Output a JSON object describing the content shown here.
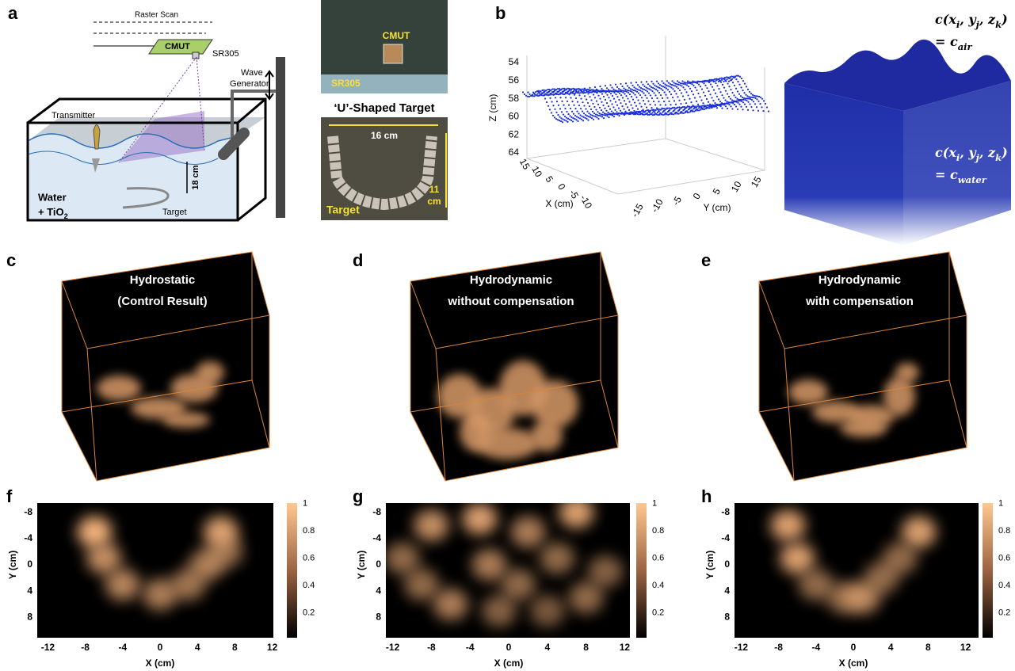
{
  "panel_labels": [
    "a",
    "b",
    "c",
    "d",
    "e",
    "f",
    "g",
    "h"
  ],
  "a": {
    "raster_scan": "Raster Scan",
    "cmut": "CMUT",
    "sr305": "SR305",
    "wave_generator": [
      "Wave",
      "Generator"
    ],
    "transmitter": "Transmitter",
    "depth": "18 cm",
    "medium_line1": "Water",
    "medium_line2": [
      "+ TiO",
      "2"
    ],
    "target": "Target",
    "photo_top": {
      "cmut": "CMUT",
      "sr305": "SR305"
    },
    "photo_bottom": {
      "title": "‘U’-Shaped Target",
      "width": "16 cm",
      "height": [
        "11",
        "cm"
      ],
      "target": "Target"
    }
  },
  "b": {
    "z_label": "Z (cm)",
    "x_label": "X (cm)",
    "y_label": "Y (cm)",
    "z_ticks": [
      54,
      56,
      58,
      60,
      62,
      64
    ],
    "x_ticks": [
      15,
      10,
      5,
      0,
      -5,
      -10
    ],
    "y_ticks": [
      -15,
      -10,
      -5,
      0,
      5,
      10,
      15
    ],
    "air_eq": {
      "lhs": [
        "c(x",
        "i",
        ", y",
        "j",
        ", z",
        "k",
        ")"
      ],
      "rhs": [
        "= c",
        "air"
      ]
    },
    "water_eq": {
      "lhs": [
        "c(x",
        "i",
        ", y",
        "j",
        ", z",
        "k",
        ")"
      ],
      "rhs": [
        "= c",
        "water"
      ]
    }
  },
  "c": {
    "caption": [
      "Hydrostatic",
      "(Control Result)"
    ]
  },
  "d": {
    "caption": [
      "Hydrodynamic",
      "without compensation"
    ]
  },
  "e": {
    "caption": [
      "Hydrodynamic",
      "with compensation"
    ]
  },
  "heatmaps": {
    "y_label": "Y (cm)",
    "x_label": "X (cm)",
    "y_ticks": [
      -8,
      -4,
      0,
      4,
      8
    ],
    "x_ticks": [
      -12,
      -8,
      -4,
      0,
      4,
      8,
      12
    ],
    "colorbar_ticks": [
      1,
      0.8,
      0.6,
      0.4,
      0.2
    ]
  }
}
